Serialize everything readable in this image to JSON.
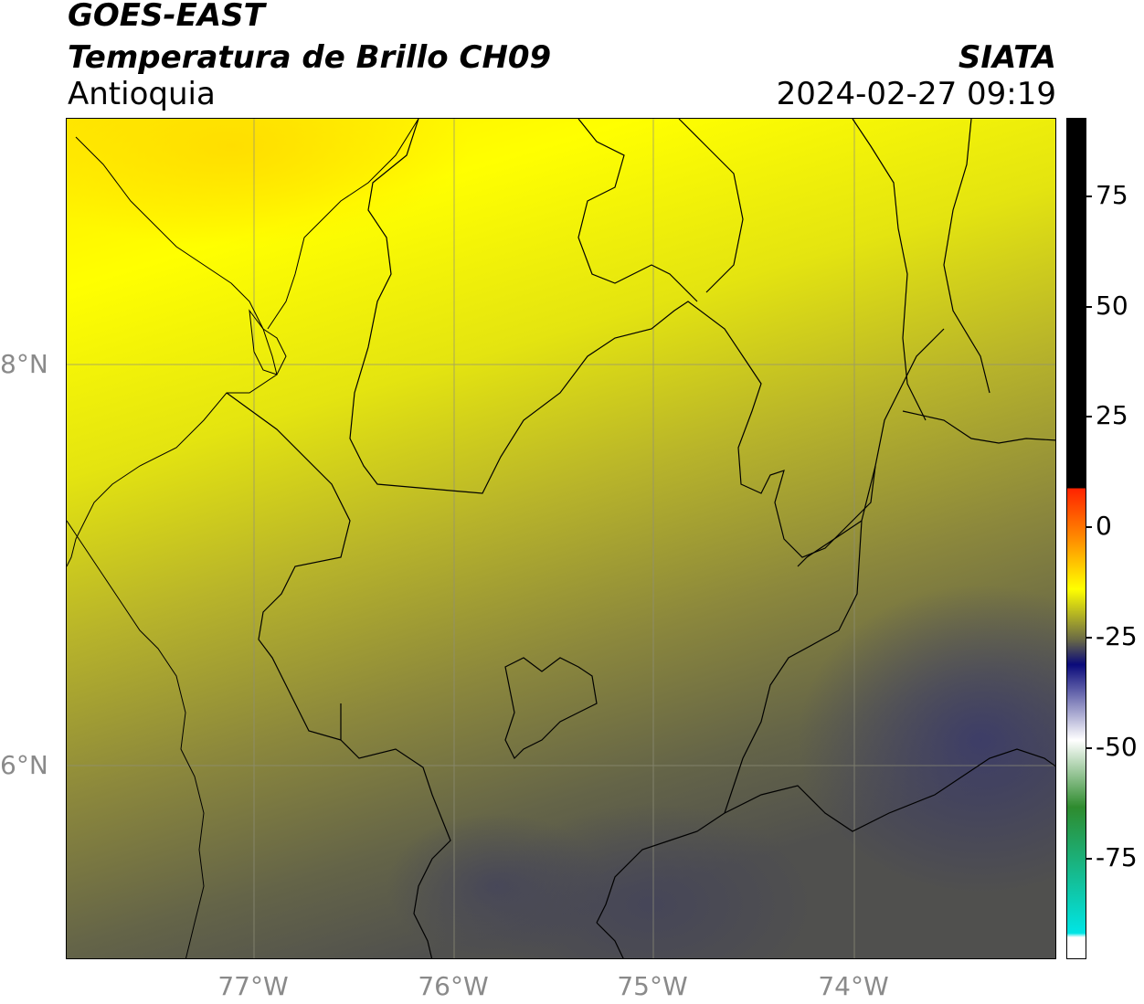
{
  "header": {
    "satellite": "GOES-EAST",
    "product": "Temperatura de Brillo CH09",
    "region": "Antioquia",
    "agency": "SIATA",
    "timestamp": "2024-02-27 09:19"
  },
  "map": {
    "latitude_labels": [
      "8°N",
      "6°N"
    ],
    "longitude_labels": [
      "77°W",
      "76°W",
      "75°W",
      "74°W"
    ],
    "gridlines": true
  },
  "colorbar": {
    "tick_labels": [
      "75",
      "50",
      "25",
      "0",
      "-25",
      "-50",
      "-75"
    ],
    "colors": {
      "black": "#000000",
      "red": "#ff2200",
      "orange": "#ff8c00",
      "yellow": "#ffff00",
      "olive": "#6b6b45",
      "navy": "#0a0a7a",
      "white": "#ffffff",
      "green": "#2e8b2e",
      "cyan": "#00e5e5"
    }
  }
}
